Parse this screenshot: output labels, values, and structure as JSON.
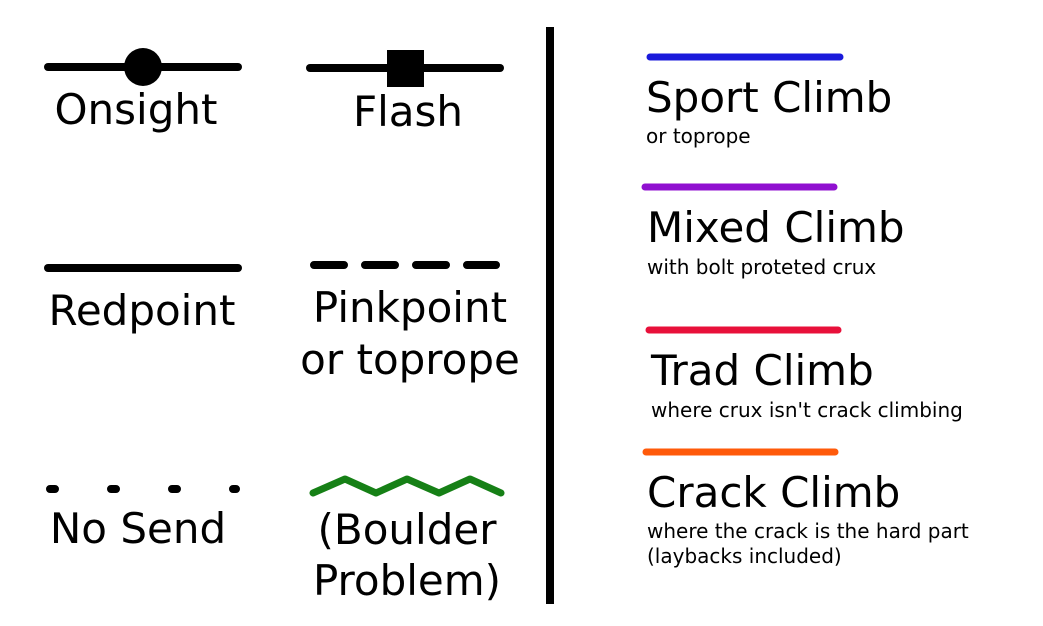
{
  "send_styles": {
    "onsight": "Onsight",
    "flash": "Flash",
    "redpoint": "Redpoint",
    "pinkpoint_line1": "Pinkpoint",
    "pinkpoint_line2": "or toprope",
    "no_send": "No Send",
    "boulder_line1": "(Boulder",
    "boulder_line2": "Problem)"
  },
  "climb_types": [
    {
      "title": "Sport Climb",
      "note": "or toprope",
      "color": "#1a1adb"
    },
    {
      "title": "Mixed Climb",
      "note": "with bolt proteted crux",
      "color": "#9010d0"
    },
    {
      "title": "Trad Climb",
      "note": "where crux isn't crack climbing",
      "color": "#e8103a"
    },
    {
      "title": "Crack Climb",
      "note": "where the crack is the hard part",
      "note2": "(laybacks included)",
      "color": "#ff5a0a"
    }
  ],
  "colors": {
    "line": "#000000",
    "boulder": "#168016"
  }
}
